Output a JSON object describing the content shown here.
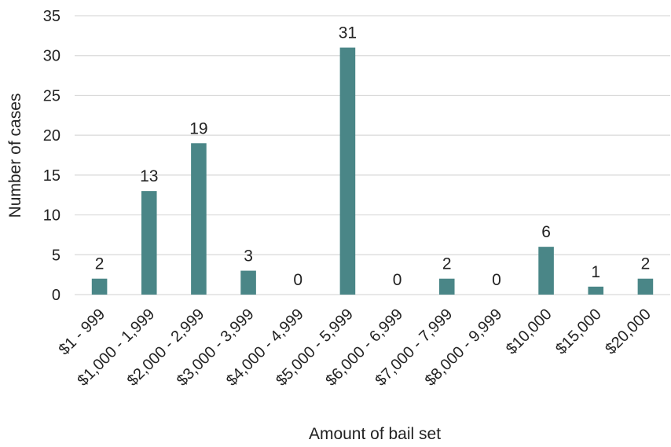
{
  "chart_data": {
    "type": "bar",
    "categories": [
      "$1 - 999",
      "$1,000 - 1,999",
      "$2,000 - 2,999",
      "$3,000 - 3,999",
      "$4,000 - 4,999",
      "$5,000 - 5,999",
      "$6,000 - 6,999",
      "$7,000 - 7,999",
      "$8,000 - 9,999",
      "$10,000",
      "$15,000",
      "$20,000"
    ],
    "values": [
      2,
      13,
      19,
      3,
      0,
      31,
      0,
      2,
      0,
      6,
      1,
      2
    ],
    "data_labels": [
      "2",
      "13",
      "19",
      "3",
      "0",
      "31",
      "0",
      "2",
      "0",
      "6",
      "1",
      "2"
    ],
    "title": "",
    "xlabel": "Amount of bail set",
    "ylabel": "Number of cases",
    "ylim": [
      0,
      35
    ],
    "yticks": [
      "0",
      "5",
      "10",
      "15",
      "20",
      "25",
      "30",
      "35"
    ],
    "grid": true,
    "legend": "none",
    "bar_color": "#4a8687"
  }
}
